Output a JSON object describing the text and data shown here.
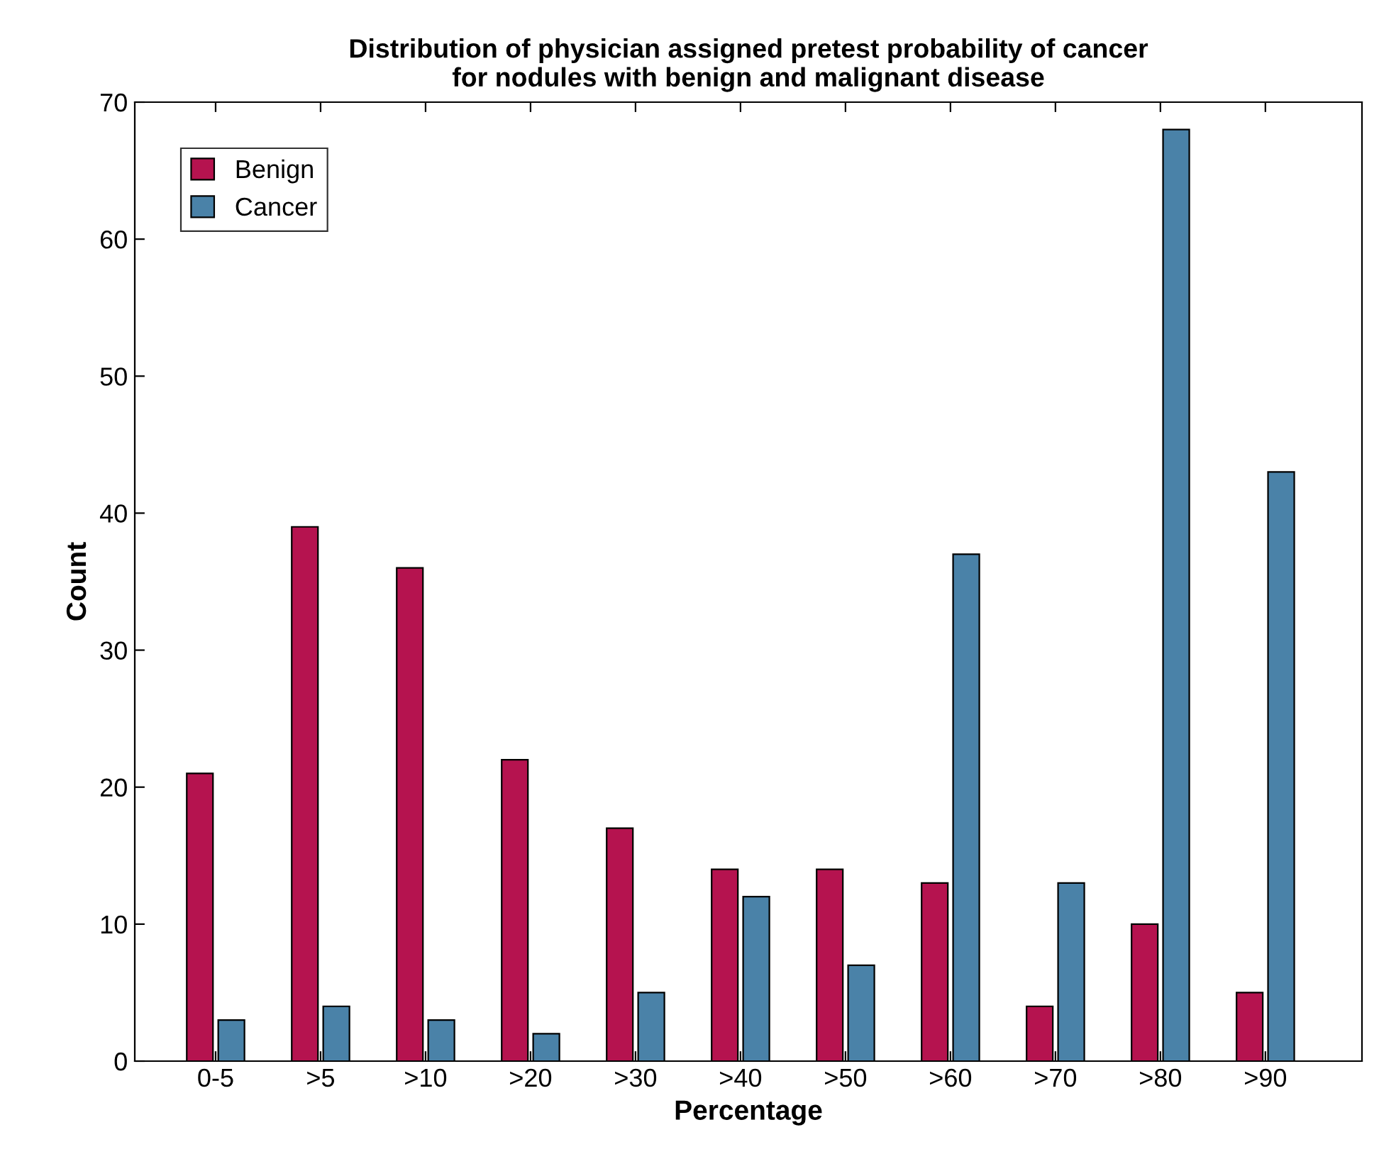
{
  "chart_data": {
    "type": "bar",
    "title": "Distribution of physician assigned pretest probability of cancer\nfor nodules with benign and malignant disease",
    "xlabel": "Percentage",
    "ylabel": "Count",
    "categories": [
      "0-5",
      ">5",
      ">10",
      ">20",
      ">30",
      ">40",
      ">50",
      ">60",
      ">70",
      ">80",
      ">90"
    ],
    "series": [
      {
        "name": "Benign",
        "color": "#b5134f",
        "values": [
          21,
          39,
          36,
          22,
          17,
          14,
          14,
          13,
          4,
          10,
          5
        ]
      },
      {
        "name": "Cancer",
        "color": "#4a82a8",
        "values": [
          3,
          4,
          3,
          2,
          5,
          12,
          7,
          37,
          13,
          68,
          43
        ]
      }
    ],
    "ylim": [
      0,
      70
    ],
    "yticks": [
      0,
      10,
      20,
      30,
      40,
      50,
      60,
      70
    ],
    "grid": false,
    "legend": "top left"
  }
}
